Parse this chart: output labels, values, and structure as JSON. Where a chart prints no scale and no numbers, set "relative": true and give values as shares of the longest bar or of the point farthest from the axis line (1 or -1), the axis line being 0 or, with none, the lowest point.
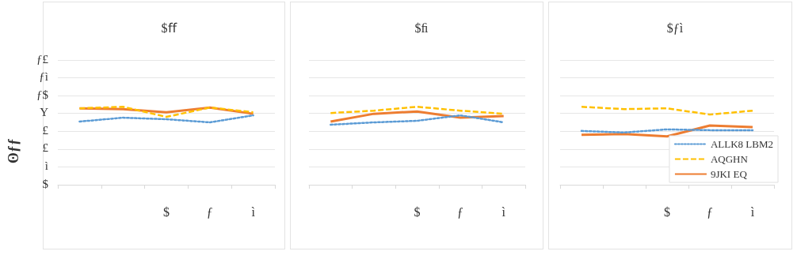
{
  "chart_data": [
    {
      "type": "line",
      "title": "$ﬀ",
      "ylabel": "ʘƒƒ",
      "relative": true,
      "annotations": [
        "$",
        "ì",
        "£",
        "£",
        "Y",
        "ƒ$",
        "ƒì",
        "ƒ£"
      ],
      "categories": [
        null,
        null,
        "$",
        "ƒ",
        "ì"
      ],
      "grid": "y",
      "marker": "none",
      "series": [
        {
          "color": "#5b9bd5",
          "line_style": "dotted",
          "values": [
            0.81,
            0.86,
            0.84,
            0.8,
            0.89
          ]
        },
        {
          "color": "#ffc000",
          "line_style": "dashed",
          "values": [
            0.98,
            1,
            0.87,
            0.99,
            0.93
          ]
        },
        {
          "color": "#ed7d31",
          "line_style": "solid",
          "values": [
            0.98,
            0.97,
            0.93,
            0.99,
            0.91
          ]
        }
      ]
    },
    {
      "type": "line",
      "title": "$ﬁ",
      "relative": true,
      "categories": [
        null,
        null,
        "$",
        "ƒ",
        "ì"
      ],
      "grid": "y",
      "marker": "none",
      "series": [
        {
          "color": "#5b9bd5",
          "line_style": "dotted",
          "values": [
            0.77,
            0.8,
            0.82,
            0.89,
            0.8
          ]
        },
        {
          "color": "#ffc000",
          "line_style": "dashed",
          "values": [
            0.92,
            0.95,
            1,
            0.95,
            0.91
          ]
        },
        {
          "color": "#ed7d31",
          "line_style": "solid",
          "values": [
            0.81,
            0.91,
            0.94,
            0.86,
            0.88
          ]
        }
      ]
    },
    {
      "type": "line",
      "title": "$ƒì",
      "relative": true,
      "categories": [
        null,
        null,
        "$",
        "ƒ",
        "ì"
      ],
      "grid": "y",
      "marker": "none",
      "legend": "bottom right",
      "series": [
        {
          "name": "ALLK8 LBM2",
          "color": "#5b9bd5",
          "line_style": "dotted",
          "values": [
            0.69,
            0.67,
            0.71,
            0.7,
            0.7
          ]
        },
        {
          "name": "AQGHN",
          "color": "#ffc000",
          "line_style": "dashed",
          "values": [
            1,
            0.97,
            0.98,
            0.9,
            0.95
          ]
        },
        {
          "name": "9JKI EQ",
          "color": "#ed7d31",
          "line_style": "solid",
          "values": [
            0.64,
            0.65,
            0.62,
            0.76,
            0.74
          ]
        }
      ]
    }
  ]
}
